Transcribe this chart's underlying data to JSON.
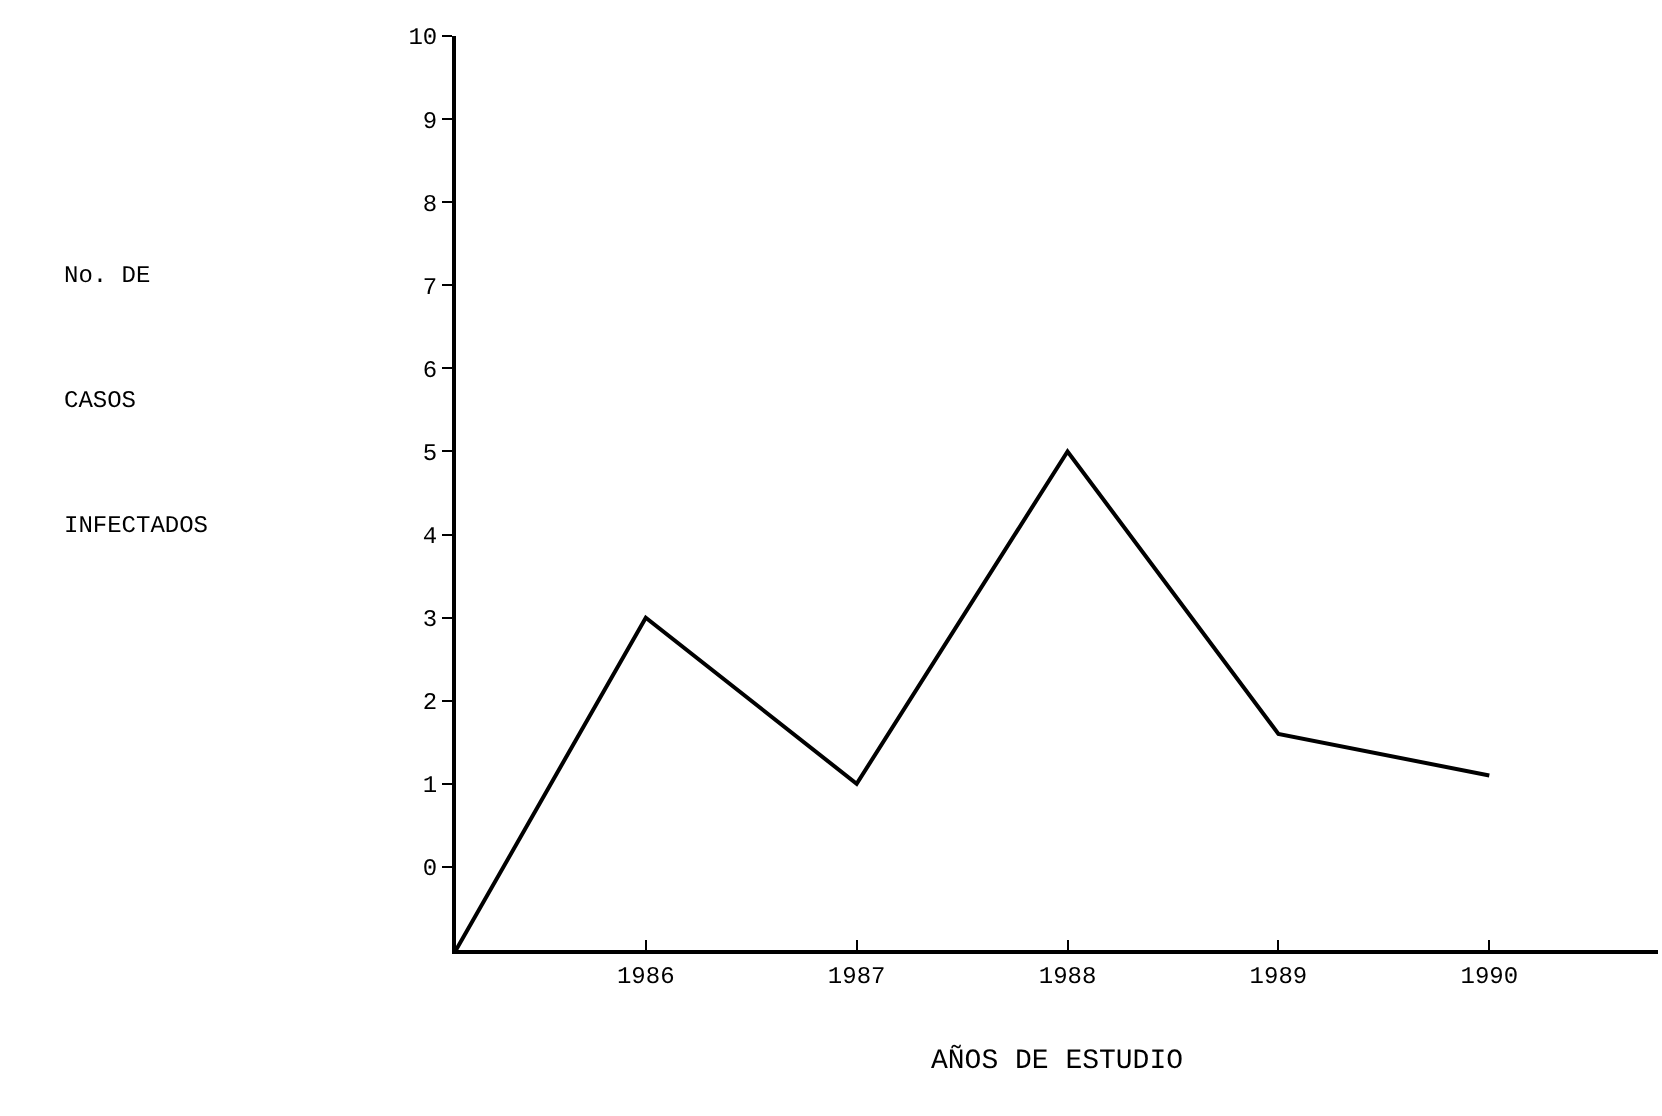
{
  "chart_data": {
    "type": "line",
    "xlabel": "AÑOS DE ESTUDIO",
    "ylabel": "No. DE\nCASOS\nINFECTADOS",
    "x": [
      1985.1,
      1986,
      1987,
      1988,
      1989,
      1990
    ],
    "series": [
      {
        "color": "#000000",
        "values": [
          -1,
          3,
          1,
          5,
          1.6,
          1.1
        ]
      }
    ],
    "xlim": [
      1985.1,
      1990.8
    ],
    "xticks": [
      1986,
      1987,
      1988,
      1989,
      1990
    ],
    "ylim": [
      -1,
      10
    ],
    "yticks": [
      0,
      1,
      2,
      3,
      4,
      5,
      6,
      7,
      8,
      9,
      10
    ],
    "grid": false,
    "marker": "none",
    "line_style": "solid"
  }
}
